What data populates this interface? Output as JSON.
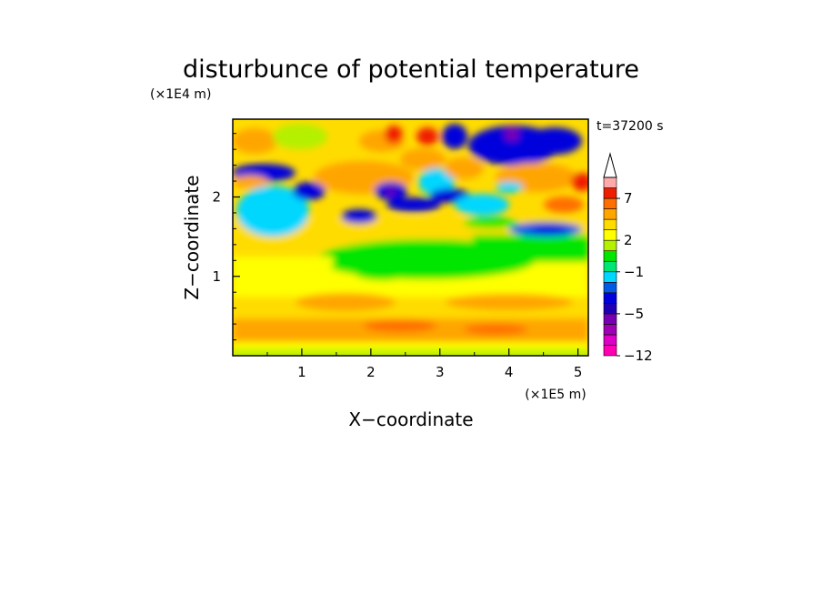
{
  "chart_data": {
    "type": "heatmap",
    "title": "disturbunce of potential temperature",
    "xlabel": "X−coordinate",
    "ylabel": "Z−coordinate",
    "x_unit": "(×1E5 m)",
    "y_unit": "(×1E4 m)",
    "time_label": "t=37200 s",
    "xlim": [
      0,
      5.15
    ],
    "ylim": [
      0,
      2.98
    ],
    "x_ticks": [
      1,
      2,
      3,
      4,
      5
    ],
    "y_ticks": [
      1,
      2
    ],
    "colorbar": {
      "levels": [
        -12,
        -10,
        -8,
        -6,
        -5,
        -4,
        -3,
        -2,
        -1,
        0,
        1,
        2,
        3,
        4,
        5,
        7,
        9,
        12
      ],
      "labeled_ticks": [
        "−12",
        "−5",
        "−1",
        "2",
        "7"
      ],
      "colors": [
        "#ff00b4",
        "#dc00c8",
        "#a000b4",
        "#7800b4",
        "#1e00b4",
        "#0000dc",
        "#005ae6",
        "#00d7ff",
        "#00e673",
        "#00e600",
        "#b4f000",
        "#ffff00",
        "#ffdc00",
        "#ffa500",
        "#ff6e00",
        "#f01e00",
        "#ffaaaa"
      ],
      "extend": "max"
    },
    "grid": false
  }
}
